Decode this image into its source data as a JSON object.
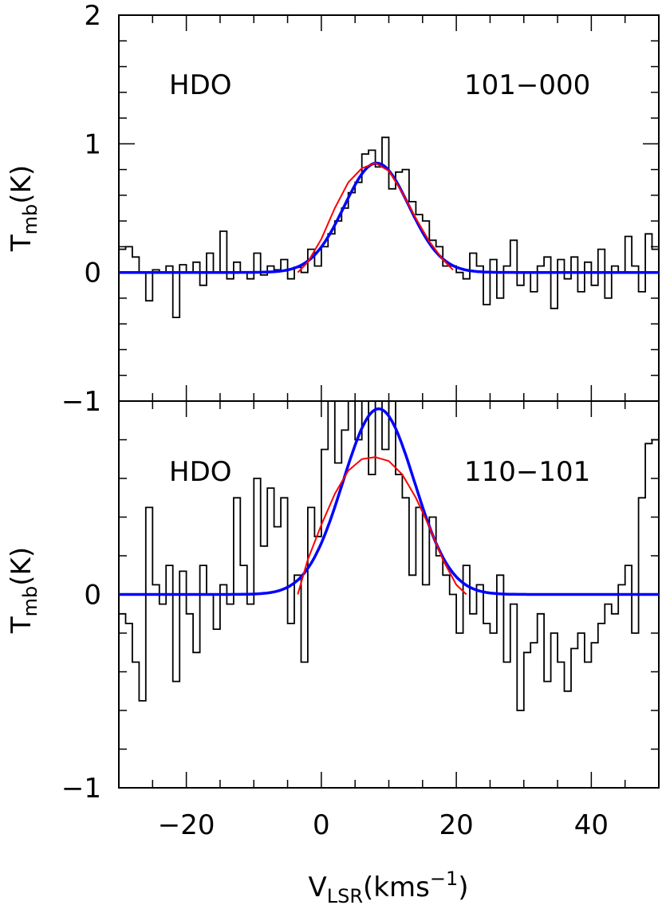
{
  "chart_data": [
    {
      "type": "line",
      "panel": "top",
      "molecule": "HDO",
      "transition": "101−000",
      "xlim": [
        -30,
        50
      ],
      "ylim": [
        -1,
        2
      ],
      "y_ticks": [
        {
          "v": -1,
          "label": "−1"
        },
        {
          "v": 0,
          "label": "0"
        },
        {
          "v": 1,
          "label": "1"
        },
        {
          "v": 2,
          "label": "2"
        }
      ],
      "ylabel_main": "T",
      "ylabel_sub": "mb",
      "ylabel_tail": "(K)",
      "series": [
        {
          "kind": "observed",
          "color": "#000000",
          "x": [
            -30,
            -29,
            -28,
            -27,
            -26,
            -25,
            -24,
            -23,
            -22,
            -21,
            -20,
            -19,
            -18,
            -17,
            -16,
            -15,
            -14,
            -13,
            -12,
            -11,
            -10,
            -9,
            -8,
            -7,
            -6,
            -5,
            -4,
            -3,
            -2,
            -1,
            0,
            1,
            2,
            3,
            4,
            5,
            6,
            7,
            8,
            9,
            10,
            11,
            12,
            13,
            14,
            15,
            16,
            17,
            18,
            19,
            20,
            21,
            22,
            23,
            24,
            25,
            26,
            27,
            28,
            29,
            30,
            31,
            32,
            33,
            34,
            35,
            36,
            37,
            38,
            39,
            40,
            41,
            42,
            43,
            44,
            45,
            46,
            47,
            48,
            49
          ],
          "y": [
            0.18,
            0.2,
            0.12,
            0.0,
            -0.22,
            0.02,
            0.0,
            0.05,
            -0.35,
            0.06,
            0.0,
            0.08,
            -0.1,
            0.15,
            0.0,
            0.32,
            -0.05,
            0.08,
            0.0,
            -0.05,
            0.15,
            -0.02,
            0.05,
            0.02,
            0.1,
            -0.05,
            0.04,
            0.0,
            0.18,
            0.05,
            0.2,
            0.3,
            0.4,
            0.5,
            0.62,
            0.7,
            0.92,
            0.95,
            0.82,
            1.05,
            0.65,
            0.78,
            0.8,
            0.55,
            0.45,
            0.4,
            0.25,
            0.2,
            0.05,
            0.05,
            0.0,
            -0.05,
            0.15,
            0.05,
            -0.25,
            0.1,
            -0.2,
            0.05,
            0.25,
            -0.1,
            0.0,
            -0.15,
            0.05,
            0.12,
            -0.28,
            0.1,
            -0.05,
            0.12,
            -0.15,
            0.08,
            -0.1,
            0.18,
            -0.2,
            0.05,
            0.0,
            0.28,
            0.05,
            -0.15,
            0.3,
            0.18
          ]
        },
        {
          "kind": "gaussian fit",
          "color": "#0000ff",
          "amp": 0.85,
          "center": 8.2,
          "sigma": 4.8
        },
        {
          "kind": "model",
          "color": "#ff0000",
          "x": [
            -3.5,
            -2,
            0,
            2,
            4,
            6,
            8,
            10,
            12,
            14,
            16,
            18,
            19.5
          ],
          "y": [
            0.0,
            0.08,
            0.26,
            0.5,
            0.7,
            0.81,
            0.85,
            0.79,
            0.62,
            0.42,
            0.24,
            0.1,
            0.02
          ]
        }
      ]
    },
    {
      "type": "line",
      "panel": "bottom",
      "molecule": "HDO",
      "transition": "110−101",
      "xlim": [
        -30,
        50
      ],
      "ylim": [
        -1,
        1
      ],
      "y_ticks": [
        {
          "v": -1,
          "label": "−1"
        },
        {
          "v": 0,
          "label": "0"
        },
        {
          "v": 1,
          "label": "1"
        }
      ],
      "x_ticks": [
        {
          "v": -20,
          "label": "−20"
        },
        {
          "v": 0,
          "label": "0"
        },
        {
          "v": 20,
          "label": "20"
        },
        {
          "v": 40,
          "label": "40"
        }
      ],
      "ylabel_main": "T",
      "ylabel_sub": "mb",
      "ylabel_tail": "(K)",
      "series": [
        {
          "kind": "observed",
          "color": "#000000",
          "x": [
            -30,
            -29,
            -28,
            -27,
            -26,
            -25,
            -24,
            -23,
            -22,
            -21,
            -20,
            -19,
            -18,
            -17,
            -16,
            -15,
            -14,
            -13,
            -12,
            -11,
            -10,
            -9,
            -8,
            -7,
            -6,
            -5,
            -4,
            -3,
            -2,
            -1,
            0,
            1,
            2,
            3,
            4,
            5,
            6,
            7,
            8,
            9,
            10,
            11,
            12,
            13,
            14,
            15,
            16,
            17,
            18,
            19,
            20,
            21,
            22,
            23,
            24,
            25,
            26,
            27,
            28,
            29,
            30,
            31,
            32,
            33,
            34,
            35,
            36,
            37,
            38,
            39,
            40,
            41,
            42,
            43,
            44,
            45,
            46,
            47,
            48,
            49
          ],
          "y": [
            -0.1,
            -0.15,
            -0.35,
            -0.55,
            0.45,
            0.05,
            -0.05,
            0.15,
            -0.45,
            0.12,
            -0.1,
            -0.3,
            0.15,
            0.0,
            -0.18,
            0.05,
            -0.05,
            0.5,
            0.15,
            -0.05,
            0.6,
            0.25,
            0.55,
            0.35,
            0.5,
            -0.15,
            0.1,
            -0.35,
            0.45,
            0.3,
            0.75,
            1.05,
            0.68,
            0.85,
            1.1,
            0.8,
            1.3,
            0.62,
            1.15,
            0.75,
            1.15,
            0.62,
            0.5,
            0.1,
            0.45,
            0.05,
            0.4,
            0.2,
            0.1,
            0.0,
            -0.2,
            0.15,
            -0.1,
            0.05,
            -0.15,
            -0.2,
            0.1,
            -0.35,
            -0.05,
            -0.6,
            -0.3,
            -0.25,
            -0.1,
            -0.45,
            -0.2,
            -0.35,
            -0.5,
            -0.28,
            -0.2,
            -0.35,
            -0.25,
            -0.15,
            -0.05,
            -0.1,
            0.05,
            0.15,
            -0.2,
            0.5,
            0.78,
            0.8
          ]
        },
        {
          "kind": "gaussian fit",
          "color": "#0000ff",
          "amp": 0.96,
          "center": 8.5,
          "sigma": 5.3
        },
        {
          "kind": "model",
          "color": "#ff0000",
          "x": [
            -3.5,
            -2,
            0,
            2,
            4,
            6,
            8,
            10,
            12,
            14,
            16,
            18,
            20,
            21.5
          ],
          "y": [
            0.0,
            0.18,
            0.36,
            0.52,
            0.64,
            0.7,
            0.71,
            0.69,
            0.62,
            0.5,
            0.35,
            0.18,
            0.05,
            0.0
          ]
        }
      ]
    }
  ],
  "xlabel_main": "V",
  "xlabel_sub": "LSR",
  "xlabel_unit": "(kms",
  "xlabel_exp": "−1",
  "xlabel_close": ")"
}
